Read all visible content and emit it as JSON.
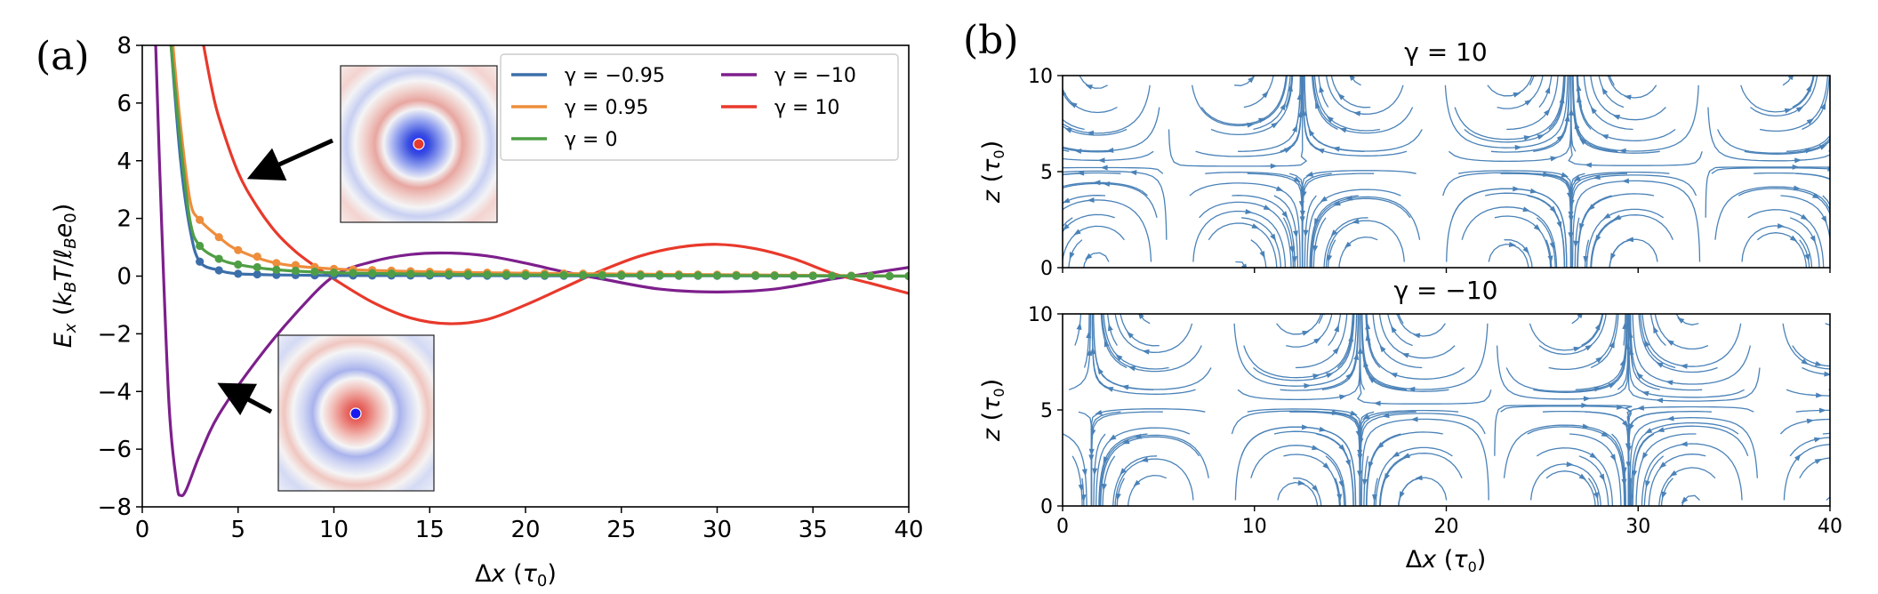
{
  "panel_labels": {
    "a": "(a)",
    "b": "(b)"
  },
  "colors": {
    "g_m095": "#3c6faa",
    "g_p095": "#ee8d3c",
    "g_0": "#4f9e45",
    "g_m10": "#7d1f8c",
    "g_p10": "#e8392b",
    "stream": "#4a82b8"
  },
  "chart_data": [
    {
      "type": "line",
      "panel": "(a)",
      "title": "",
      "xlabel": "Δx (τ₀)",
      "ylabel": "Eₓ (k_BT/ℓ_Be₀)",
      "xlim": [
        0,
        40
      ],
      "ylim": [
        -8,
        8
      ],
      "xticks": [
        "0",
        "5",
        "10",
        "15",
        "20",
        "25",
        "30",
        "35",
        "40"
      ],
      "yticks": [
        "−8",
        "−6",
        "−4",
        "−2",
        "0",
        "2",
        "4",
        "6",
        "8"
      ],
      "legend": "top-right",
      "series": [
        {
          "name": "γ = −0.95",
          "color_key": "g_m095",
          "markers": true,
          "x": [
            1.5,
            2.0,
            2.5,
            3.0,
            4.0,
            5.0,
            7.0,
            10.0,
            15.0,
            20.0,
            30.0,
            40.0
          ],
          "y": [
            8.0,
            4.0,
            1.6,
            0.5,
            0.2,
            0.08,
            0.04,
            0.02,
            0.02,
            0.01,
            0.01,
            0.0
          ]
        },
        {
          "name": "γ = 0.95",
          "color_key": "g_p095",
          "markers": true,
          "x": [
            1.6,
            2.0,
            2.5,
            3.0,
            4.0,
            5.0,
            7.0,
            10.0,
            15.0,
            20.0,
            30.0,
            40.0
          ],
          "y": [
            8.0,
            5.2,
            2.6,
            1.95,
            1.35,
            0.9,
            0.45,
            0.25,
            0.15,
            0.1,
            0.05,
            0.0
          ]
        },
        {
          "name": "γ = 0",
          "color_key": "g_0",
          "markers": true,
          "x": [
            1.5,
            2.0,
            2.5,
            3.0,
            4.0,
            5.0,
            7.0,
            10.0,
            15.0,
            20.0,
            30.0,
            40.0
          ],
          "y": [
            8.0,
            4.6,
            1.9,
            1.05,
            0.6,
            0.4,
            0.22,
            0.12,
            0.07,
            0.04,
            0.02,
            0.0
          ]
        },
        {
          "name": "γ = −10",
          "color_key": "g_m10",
          "markers": false,
          "x": [
            0.7,
            1.0,
            1.4,
            1.8,
            2.0,
            2.3,
            3.0,
            4.0,
            6.0,
            8.0,
            10.0,
            12.0,
            14.0,
            16.0,
            18.0,
            20.0,
            22.0,
            24.0,
            27.0,
            30.0,
            33.0,
            36.0,
            38.0,
            40.0
          ],
          "y": [
            8.0,
            2.0,
            -4.5,
            -7.2,
            -7.6,
            -7.4,
            -6.2,
            -4.8,
            -2.9,
            -1.3,
            0.0,
            0.5,
            0.75,
            0.8,
            0.7,
            0.45,
            0.15,
            -0.1,
            -0.45,
            -0.55,
            -0.45,
            -0.1,
            0.1,
            0.3
          ]
        },
        {
          "name": "γ = 10",
          "color_key": "g_p10",
          "markers": false,
          "x": [
            3.2,
            3.6,
            4.0,
            5.0,
            6.0,
            7.0,
            8.0,
            9.0,
            10.0,
            12.0,
            14.0,
            16.0,
            18.0,
            20.0,
            22.0,
            24.0,
            26.0,
            28.0,
            30.0,
            32.0,
            34.0,
            36.0,
            38.0,
            40.0
          ],
          "y": [
            8.0,
            6.6,
            5.5,
            3.6,
            2.4,
            1.5,
            0.85,
            0.35,
            -0.1,
            -0.9,
            -1.45,
            -1.65,
            -1.5,
            -1.0,
            -0.4,
            0.2,
            0.7,
            1.0,
            1.1,
            0.95,
            0.6,
            0.1,
            -0.25,
            -0.6
          ]
        }
      ]
    },
    {
      "type": "streamplot",
      "panel": "(b)",
      "title": "γ = 10",
      "xlabel": "",
      "ylabel": "z (τ₀)",
      "xlim": [
        0,
        40
      ],
      "ylim": [
        0,
        10
      ],
      "yticks": [
        "0",
        "5",
        "10"
      ],
      "saddle_x": [
        9,
        24,
        37
      ],
      "center_x": [
        5,
        17,
        31
      ],
      "hyperbolic_centers": [
        3,
        16,
        30
      ]
    },
    {
      "type": "streamplot",
      "panel": "(b)",
      "title": "γ = −10",
      "xlabel": "Δx (τ₀)",
      "ylabel": "z (τ₀)",
      "xlim": [
        0,
        40
      ],
      "ylim": [
        0,
        10
      ],
      "xticks": [
        "0",
        "10",
        "20",
        "30",
        "40"
      ],
      "yticks": [
        "0",
        "5",
        "10"
      ],
      "saddle_x": [
        5,
        17,
        31
      ],
      "hyperbolic_centers": [
        3,
        17,
        31
      ]
    }
  ]
}
